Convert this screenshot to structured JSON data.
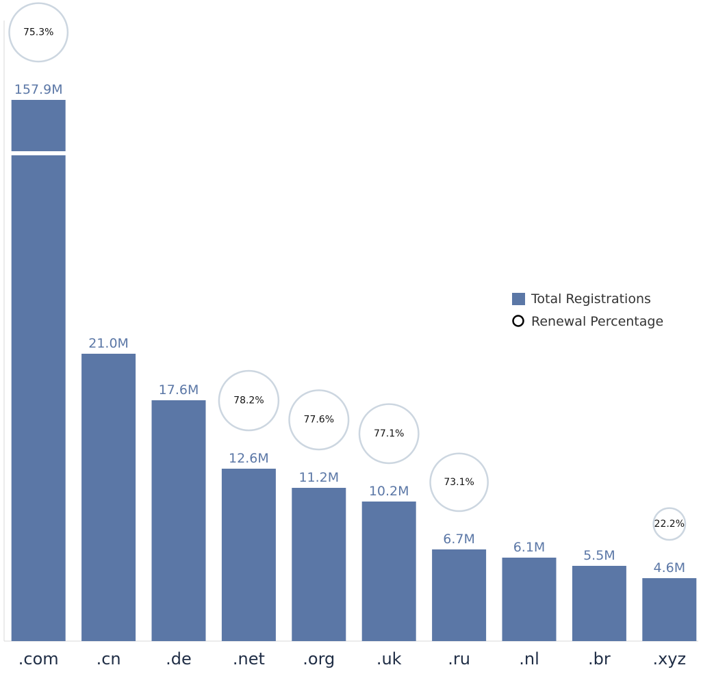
{
  "chart_data": {
    "type": "bar",
    "categories": [
      ".com",
      ".cn",
      ".de",
      ".net",
      ".org",
      ".uk",
      ".ru",
      ".nl",
      ".br",
      ".xyz"
    ],
    "series": [
      {
        "name": "Total Registrations",
        "values": [
          157.9,
          21.0,
          17.6,
          12.6,
          11.2,
          10.2,
          6.7,
          6.1,
          5.5,
          4.6
        ],
        "labels": [
          "157.9M",
          "21.0M",
          "17.6M",
          "12.6M",
          "11.2M",
          "10.2M",
          "6.7M",
          "6.1M",
          "5.5M",
          "4.6M"
        ],
        "unit": "M",
        "color": "#5b77a6"
      },
      {
        "name": "Renewal Percentage",
        "values": [
          75.3,
          null,
          null,
          78.2,
          77.6,
          77.1,
          73.1,
          null,
          null,
          22.2
        ],
        "labels": [
          "75.3%",
          "",
          "",
          "78.2%",
          "77.6%",
          "77.1%",
          "73.1%",
          "",
          "",
          "22.2%"
        ],
        "marker": "circle",
        "color": "#ccd6e0"
      }
    ],
    "axis_break": true,
    "grid": false,
    "legend": {
      "position": "right"
    }
  }
}
